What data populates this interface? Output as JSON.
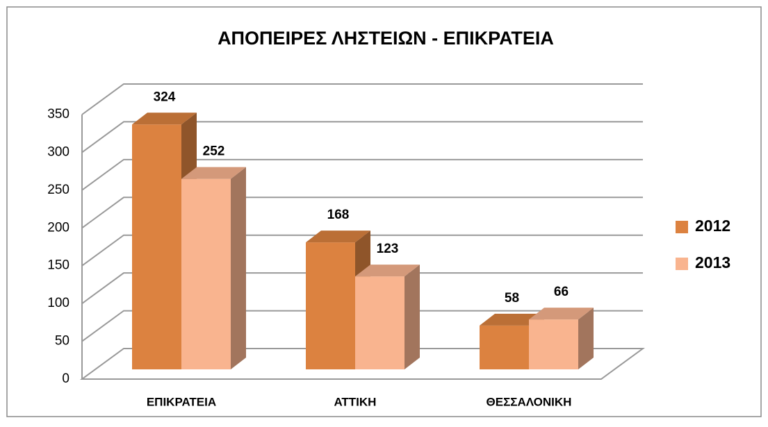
{
  "chart_data": {
    "type": "bar3d",
    "title": "ΑΠΟΠΕΙΡΕΣ ΛΗΣΤΕΙΩΝ - ΕΠΙΚΡΑΤΕΙΑ",
    "categories": [
      "ΕΠΙΚΡΑΤΕΙΑ",
      "ΑΤΤΙΚΗ",
      "ΘΕΣΣΑΛΟΝΙΚΗ"
    ],
    "series": [
      {
        "name": "2012",
        "color": "#dc8240",
        "values": [
          324,
          168,
          58
        ]
      },
      {
        "name": "2013",
        "color": "#f9b48f",
        "values": [
          252,
          123,
          66
        ]
      }
    ],
    "ylim": [
      0,
      350
    ],
    "yticks": [
      0,
      50,
      100,
      150,
      200,
      250,
      300,
      350
    ],
    "grid": true,
    "legend": "right"
  }
}
